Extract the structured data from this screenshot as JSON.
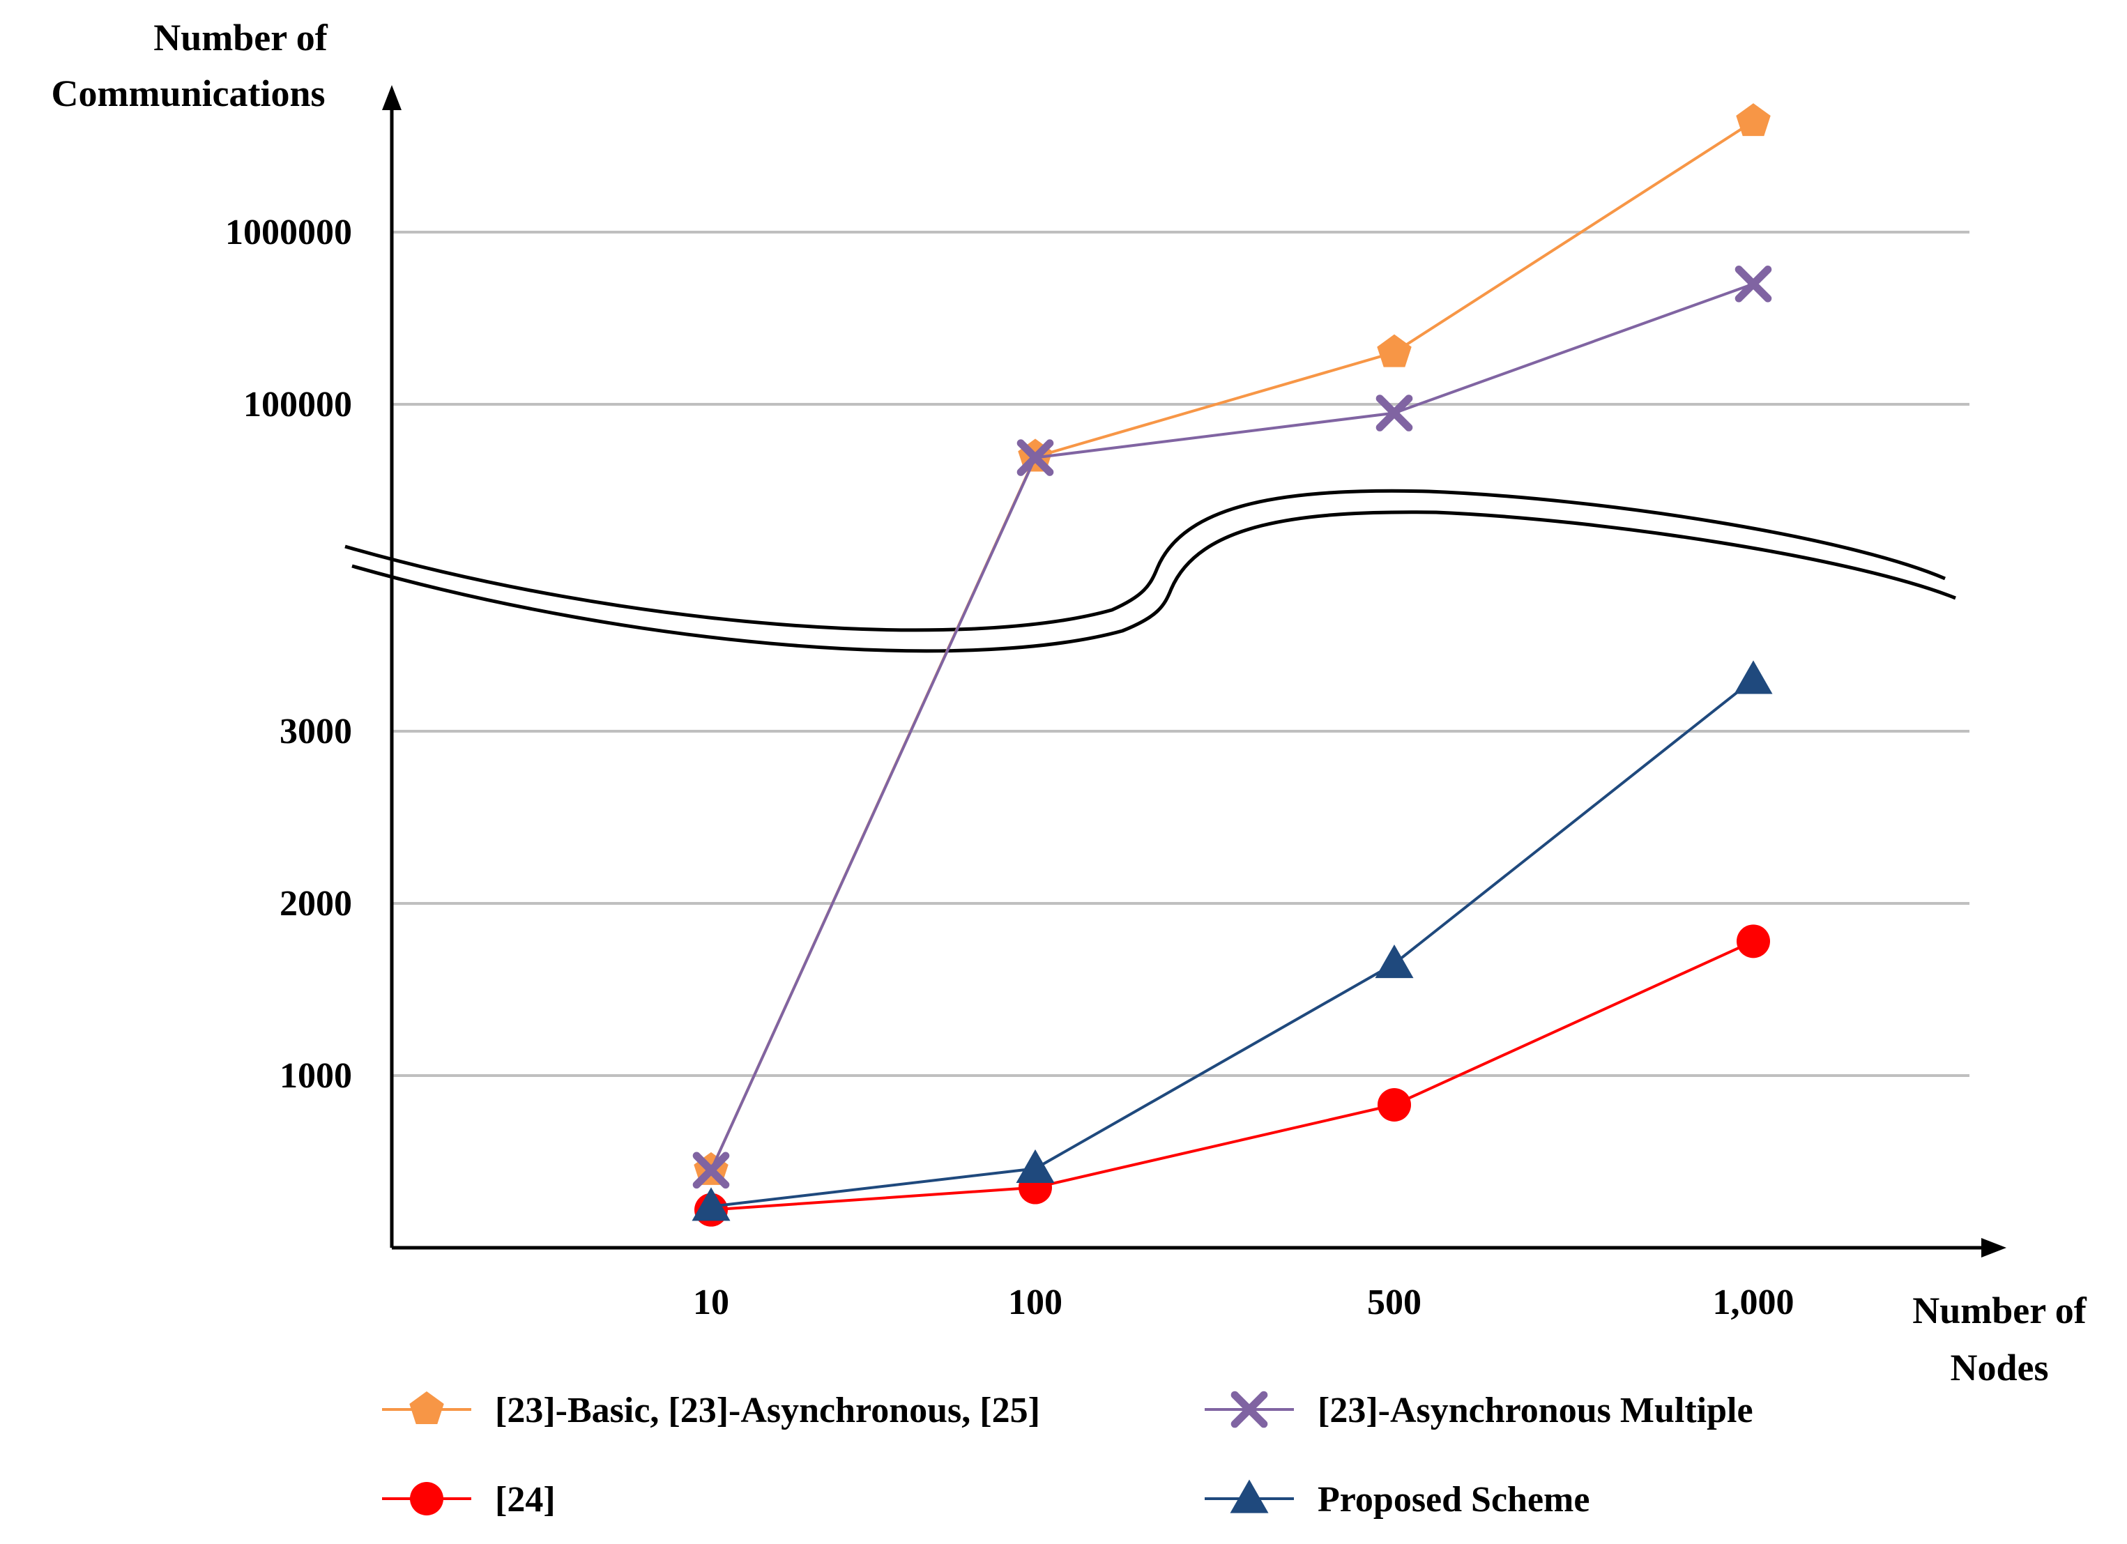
{
  "chart_data": {
    "type": "line",
    "title": "",
    "ylabel": [
      "Number of",
      "Communications"
    ],
    "xlabel": [
      "Number of",
      "Nodes"
    ],
    "categories": [
      "10",
      "100",
      "500",
      "1,000"
    ],
    "y_scale": "broken axis: linear lower segment (0–3000), logarithmic upper segment (10000–1000000+)",
    "y_ticks": [
      "1000",
      "2000",
      "3000",
      "100000",
      "1000000"
    ],
    "grid": true,
    "legend_position": "bottom",
    "series": [
      {
        "name": "[23]-Basic, [23]-Asynchronous, [25]",
        "color": "#F79646",
        "marker": "pentagon",
        "values": [
          450,
          49500,
          200000,
          4400000
        ]
      },
      {
        "name": "[23]-Asynchronous Multiple",
        "color": "#8064A2",
        "marker": "x",
        "values": [
          450,
          49000,
          89000,
          500000
        ]
      },
      {
        "name": "[24]",
        "color": "#FF0000",
        "marker": "circle",
        "values": [
          220,
          350,
          830,
          1780
        ]
      },
      {
        "name": "Proposed Scheme",
        "color": "#1F497D",
        "marker": "triangle",
        "values": [
          240,
          460,
          1650,
          3300
        ]
      }
    ]
  }
}
